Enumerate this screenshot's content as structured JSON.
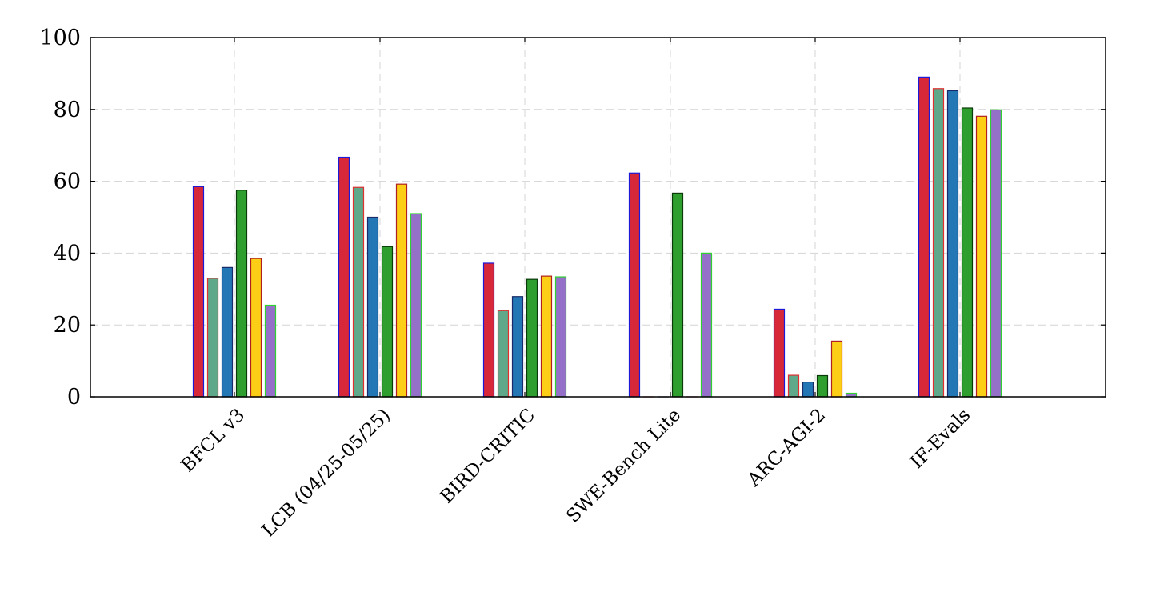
{
  "chart_data": {
    "type": "bar",
    "title": "",
    "xlabel": "",
    "ylabel": "",
    "ylim": [
      0,
      100
    ],
    "yticks": [
      0,
      20,
      40,
      60,
      80,
      100
    ],
    "grid": true,
    "legend": "none",
    "categories": [
      "BFCL v3",
      "LCB (04/25-05/25)",
      "BIRD-CRITIC",
      "SWE-Bench Lite",
      "ARC-AGI-2",
      "IF-Evals"
    ],
    "series": [
      {
        "fill": "#d62839",
        "stroke": "#1a1ad8",
        "values": [
          58.5,
          66.7,
          37.2,
          62.3,
          24.4,
          89.0
        ]
      },
      {
        "fill": "#5fa88a",
        "stroke": "#e03030",
        "values": [
          33.0,
          58.3,
          24.0,
          0,
          6.0,
          85.8
        ]
      },
      {
        "fill": "#2277b4",
        "stroke": "#1a2a6a",
        "values": [
          36.0,
          50.0,
          27.9,
          0,
          4.1,
          85.2
        ]
      },
      {
        "fill": "#2e9e2e",
        "stroke": "#0a3a0a",
        "values": [
          57.5,
          41.8,
          32.7,
          56.7,
          5.9,
          80.4
        ]
      },
      {
        "fill": "#fccf16",
        "stroke": "#b02020",
        "values": [
          38.5,
          59.2,
          33.6,
          0,
          15.5,
          78.1
        ]
      },
      {
        "fill": "#9470c8",
        "stroke": "#30d030",
        "values": [
          25.5,
          51.0,
          33.4,
          40.0,
          1.0,
          79.9
        ]
      }
    ]
  }
}
